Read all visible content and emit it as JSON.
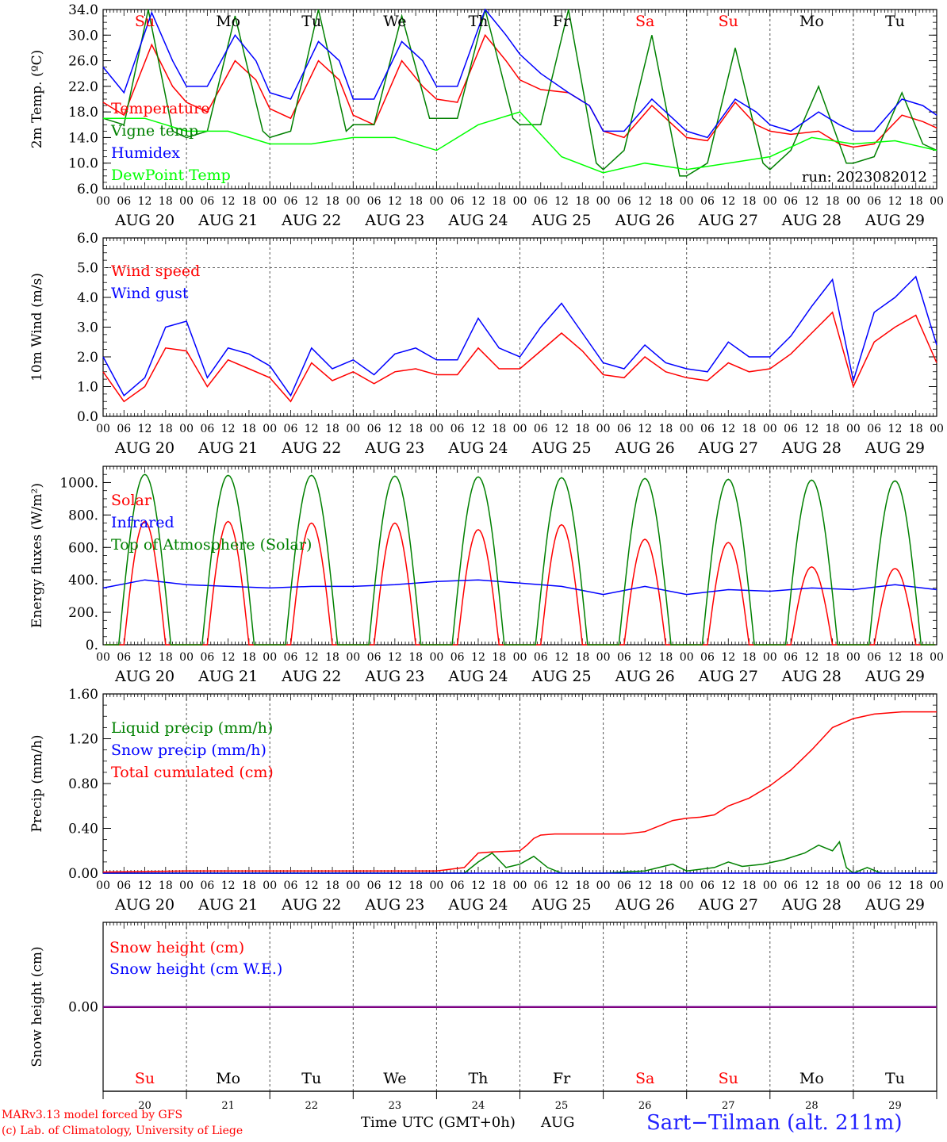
{
  "days": [
    "Su",
    "Mo",
    "Tu",
    "We",
    "Th",
    "Fr",
    "Sa",
    "Su",
    "Mo",
    "Tu"
  ],
  "day_colors": [
    "#ff0000",
    "#000000",
    "#000000",
    "#000000",
    "#000000",
    "#000000",
    "#ff0000",
    "#ff0000",
    "#000000",
    "#000000"
  ],
  "date_labels": [
    "AUG 20",
    "AUG 21",
    "AUG 22",
    "AUG 23",
    "AUG 24",
    "AUG 25",
    "AUG 26",
    "AUG 27",
    "AUG 28",
    "AUG 29"
  ],
  "hour_labels": [
    "00",
    "06",
    "12",
    "18"
  ],
  "hour_end_label": "00",
  "bottom_dates": [
    "20",
    "21",
    "22",
    "23",
    "24",
    "25",
    "26",
    "27",
    "28",
    "29"
  ],
  "footer": {
    "model": "MARv3.13 model forced by GFS",
    "credit": "(c) Lab. of Climatology, University of Liege",
    "time_axis": "Time UTC (GMT+0h)",
    "month": "AUG",
    "station": "Sart−Tilman (alt. 211m)"
  },
  "chart_data": [
    {
      "type": "line",
      "ylabel": "2m Temp. (ºC)",
      "ylim": [
        6,
        34
      ],
      "yticks": [
        6,
        10,
        14,
        18,
        22,
        26,
        30,
        34
      ],
      "ytick_labels": [
        "6.0",
        "10.0",
        "14.0",
        "18.0",
        "22.0",
        "26.0",
        "30.0",
        "34.0"
      ],
      "annotation": "run: 2023082012",
      "x_unit": "hours since AUG 20 00 UTC",
      "xlim": [
        0,
        240
      ],
      "grid": "vertical dashed at 00 UTC",
      "series": [
        {
          "name": "Temperature",
          "color": "#ff0000",
          "x": [
            0,
            6,
            14,
            20,
            24,
            30,
            38,
            44,
            48,
            54,
            62,
            68,
            72,
            78,
            86,
            92,
            96,
            102,
            110,
            116,
            120,
            126,
            134,
            140,
            144,
            150,
            158,
            164,
            168,
            174,
            182,
            188,
            192,
            198,
            206,
            212,
            216,
            222,
            230,
            236,
            240
          ],
          "y": [
            19.5,
            17.5,
            28.5,
            22,
            19.5,
            18,
            26,
            23,
            18.5,
            17,
            26,
            23,
            17.5,
            16,
            26,
            22,
            20,
            19.5,
            30,
            26,
            23,
            21.5,
            21,
            19,
            15,
            14,
            19,
            16,
            14,
            13.5,
            19.5,
            16,
            15,
            14.5,
            15,
            13,
            12.5,
            13,
            17.5,
            16.5,
            15.5
          ]
        },
        {
          "name": "Vigne temp",
          "color": "#008000",
          "x": [
            0,
            6,
            13,
            20,
            24,
            30,
            38,
            46,
            48,
            54,
            62,
            70,
            72,
            78,
            86,
            94,
            96,
            102,
            110,
            118,
            120,
            126,
            134,
            142,
            144,
            150,
            158,
            166,
            168,
            174,
            182,
            190,
            192,
            198,
            206,
            214,
            216,
            222,
            230,
            236,
            240
          ],
          "y": [
            17,
            16,
            34,
            15,
            14,
            15,
            33,
            15,
            14,
            15,
            34,
            15,
            16,
            16,
            33,
            17,
            17,
            17,
            35,
            17,
            16,
            16,
            35,
            10,
            9,
            12,
            30,
            8,
            8,
            10,
            28,
            10,
            9,
            12,
            22,
            10,
            10,
            11,
            21,
            13,
            12
          ]
        },
        {
          "name": "Humidex",
          "color": "#0000ff",
          "x": [
            0,
            6,
            14,
            20,
            24,
            30,
            38,
            44,
            48,
            54,
            62,
            68,
            72,
            78,
            86,
            92,
            96,
            102,
            110,
            116,
            120,
            126,
            134,
            140,
            144,
            150,
            158,
            164,
            168,
            174,
            182,
            188,
            192,
            198,
            206,
            212,
            216,
            222,
            230,
            236,
            240
          ],
          "y": [
            25,
            21,
            33.5,
            26,
            22,
            22,
            30,
            26,
            21,
            20,
            29,
            26,
            20,
            20,
            29,
            26,
            22,
            22,
            34,
            30,
            27,
            24,
            21,
            19,
            15,
            15,
            20,
            17,
            15,
            14,
            20,
            18,
            16,
            15,
            18,
            16,
            15,
            15,
            20,
            19,
            17.5
          ]
        },
        {
          "name": "DewPoint Temp",
          "color": "#00ff00",
          "x": [
            0,
            12,
            24,
            36,
            48,
            60,
            72,
            84,
            96,
            108,
            120,
            132,
            144,
            156,
            168,
            180,
            192,
            204,
            216,
            228,
            240
          ],
          "y": [
            17,
            17,
            15,
            15,
            13,
            13,
            14,
            14,
            12,
            16,
            18,
            11,
            8.5,
            10,
            9,
            10,
            11,
            14,
            13,
            13.5,
            12
          ]
        }
      ]
    },
    {
      "type": "line",
      "ylabel": "10m Wind (m/s)",
      "ylim": [
        0,
        6
      ],
      "yticks": [
        0,
        1,
        2,
        3,
        4,
        5,
        6
      ],
      "ytick_labels": [
        "0.0",
        "1.0",
        "2.0",
        "3.0",
        "4.0",
        "5.0",
        "6.0"
      ],
      "hline": 5,
      "x_unit": "hours since AUG 20 00 UTC",
      "xlim": [
        0,
        240
      ],
      "series": [
        {
          "name": "Wind speed",
          "color": "#ff0000",
          "x": [
            0,
            6,
            12,
            18,
            24,
            30,
            36,
            42,
            48,
            54,
            60,
            66,
            72,
            78,
            84,
            90,
            96,
            102,
            108,
            114,
            120,
            126,
            132,
            138,
            144,
            150,
            156,
            162,
            168,
            174,
            180,
            186,
            192,
            198,
            204,
            210,
            216,
            222,
            228,
            234,
            240
          ],
          "y": [
            1.5,
            0.5,
            1,
            2.3,
            2.2,
            1,
            1.9,
            1.6,
            1.3,
            0.5,
            1.8,
            1.2,
            1.5,
            1.1,
            1.5,
            1.6,
            1.4,
            1.4,
            2.3,
            1.6,
            1.6,
            2.2,
            2.8,
            2.2,
            1.4,
            1.3,
            2,
            1.5,
            1.3,
            1.2,
            1.8,
            1.5,
            1.6,
            2.1,
            2.8,
            3.5,
            1,
            2.5,
            3,
            3.4,
            1.8
          ]
        },
        {
          "name": "Wind gust",
          "color": "#0000ff",
          "x": [
            0,
            6,
            12,
            18,
            24,
            30,
            36,
            42,
            48,
            54,
            60,
            66,
            72,
            78,
            84,
            90,
            96,
            102,
            108,
            114,
            120,
            126,
            132,
            138,
            144,
            150,
            156,
            162,
            168,
            174,
            180,
            186,
            192,
            198,
            204,
            210,
            216,
            222,
            228,
            234,
            240
          ],
          "y": [
            2,
            0.7,
            1.3,
            3,
            3.2,
            1.3,
            2.3,
            2.1,
            1.7,
            0.7,
            2.3,
            1.6,
            1.9,
            1.4,
            2.1,
            2.3,
            1.9,
            1.9,
            3.3,
            2.3,
            2,
            3,
            3.8,
            2.8,
            1.8,
            1.6,
            2.4,
            1.8,
            1.6,
            1.5,
            2.5,
            2,
            2,
            2.7,
            3.7,
            4.6,
            1.2,
            3.5,
            4,
            4.7,
            2.4
          ]
        }
      ]
    },
    {
      "type": "line",
      "ylabel": "Energy fluxes (W/m²)",
      "ylim": [
        0,
        1100
      ],
      "yticks": [
        0,
        200,
        400,
        600,
        800,
        1000
      ],
      "ytick_labels": [
        "0.",
        "200.",
        "400.",
        "600.",
        "800.",
        "1000."
      ],
      "x_unit": "hours since AUG 20 00 UTC",
      "xlim": [
        0,
        240
      ],
      "series": [
        {
          "name": "Solar",
          "color": "#ff0000",
          "daily_peak_hour": 12,
          "daily_peaks": [
            760,
            760,
            750,
            750,
            710,
            740,
            650,
            630,
            480,
            470
          ]
        },
        {
          "name": "Infrared",
          "color": "#0000ff",
          "x": [
            0,
            12,
            24,
            36,
            48,
            60,
            72,
            84,
            96,
            108,
            120,
            132,
            144,
            156,
            168,
            180,
            192,
            204,
            216,
            228,
            240
          ],
          "y": [
            350,
            400,
            370,
            360,
            350,
            360,
            360,
            370,
            390,
            400,
            380,
            360,
            310,
            360,
            310,
            340,
            330,
            350,
            340,
            370,
            340
          ]
        },
        {
          "name": "Top of Atmosphere (Solar)",
          "color": "#008000",
          "daily_peak_hour": 12,
          "daily_peaks": [
            1050,
            1045,
            1045,
            1040,
            1035,
            1030,
            1025,
            1020,
            1015,
            1010
          ]
        }
      ]
    },
    {
      "type": "line",
      "ylabel": "Precip (mm/h)",
      "ylim": [
        0,
        1.6
      ],
      "yticks": [
        0,
        0.4,
        0.8,
        1.2,
        1.6
      ],
      "ytick_labels": [
        "0.00",
        "0.40",
        "0.80",
        "1.20",
        "1.60"
      ],
      "x_unit": "hours since AUG 20 00 UTC",
      "xlim": [
        0,
        240
      ],
      "series": [
        {
          "name": "Liquid precip (mm/h)",
          "color": "#008000",
          "x": [
            0,
            100,
            104,
            108,
            112,
            116,
            120,
            124,
            128,
            132,
            136,
            144,
            156,
            160,
            164,
            168,
            176,
            180,
            184,
            190,
            196,
            202,
            206,
            210,
            212,
            214,
            216,
            220,
            224,
            230,
            240
          ],
          "y": [
            0,
            0,
            0,
            0.1,
            0.18,
            0.05,
            0.08,
            0.15,
            0.05,
            0,
            0,
            0,
            0.02,
            0.05,
            0.08,
            0.02,
            0.05,
            0.1,
            0.06,
            0.08,
            0.12,
            0.18,
            0.25,
            0.2,
            0.28,
            0.05,
            0,
            0.05,
            0,
            0,
            0
          ]
        },
        {
          "name": "Snow precip (mm/h)",
          "color": "#0000ff",
          "x": [
            0,
            240
          ],
          "y": [
            0,
            0
          ]
        },
        {
          "name": "Total cumulated (cm)",
          "color": "#ff0000",
          "x": [
            0,
            24,
            96,
            104,
            108,
            112,
            120,
            122,
            124,
            126,
            130,
            140,
            150,
            156,
            160,
            164,
            168,
            172,
            176,
            180,
            186,
            192,
            198,
            204,
            210,
            216,
            222,
            230,
            240
          ],
          "y": [
            0.01,
            0.02,
            0.02,
            0.05,
            0.18,
            0.19,
            0.2,
            0.25,
            0.31,
            0.34,
            0.35,
            0.35,
            0.35,
            0.37,
            0.42,
            0.47,
            0.49,
            0.5,
            0.52,
            0.6,
            0.67,
            0.78,
            0.92,
            1.1,
            1.3,
            1.38,
            1.42,
            1.44,
            1.44
          ]
        }
      ]
    },
    {
      "type": "line",
      "ylabel": "Snow height (cm)",
      "ylim": [
        -1,
        1
      ],
      "ytick_labels": [
        "0.00"
      ],
      "x_unit": "hours since AUG 20 00 UTC",
      "xlim": [
        0,
        240
      ],
      "series": [
        {
          "name": "Snow height (cm)",
          "color": "#ff0000",
          "x": [
            0,
            240
          ],
          "y": [
            0,
            0
          ]
        },
        {
          "name": "Snow height (cm W.E.)",
          "color": "#0000ff",
          "x": [
            0,
            240
          ],
          "y": [
            0,
            0
          ]
        }
      ]
    }
  ]
}
